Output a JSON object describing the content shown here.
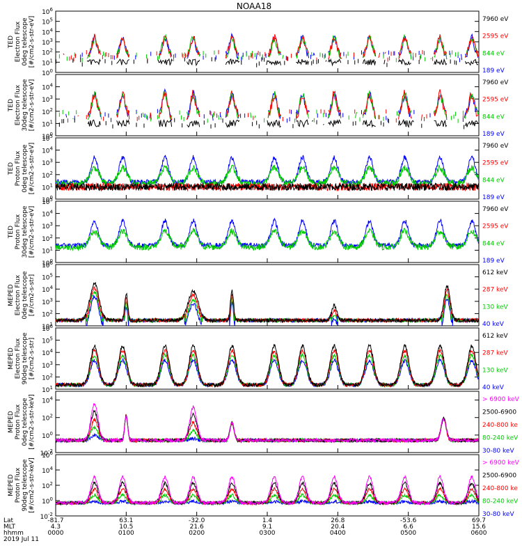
{
  "title": "NOAA18",
  "chart_data": [
    {
      "type": "line",
      "ylabel": [
        "TED",
        "Electron Flux",
        "0deg telescope",
        "[#/cm2-s-str-eV]"
      ],
      "ylim_exp": [
        0,
        6
      ],
      "yticks": [
        0,
        1,
        2,
        3,
        4,
        5,
        6
      ],
      "series": [
        {
          "name": "7960 eV",
          "color": "#000000",
          "profile": "black_low",
          "density": "sparse"
        },
        {
          "name": "2595 eV",
          "color": "#ff0000",
          "profile": "red_mid",
          "density": "sparse"
        },
        {
          "name": "844 eV",
          "color": "#00cc00",
          "profile": "green_mid",
          "density": "sparse"
        },
        {
          "name": "189 eV",
          "color": "#0000ff",
          "profile": "blue_ticks",
          "density": "sparse"
        }
      ]
    },
    {
      "type": "line",
      "ylabel": [
        "TED",
        "Electron Flux",
        "30deg telescope",
        "[#/cm2-s-str-eV]"
      ],
      "ylim_exp": [
        0,
        5
      ],
      "yticks": [
        0,
        1,
        2,
        3,
        4
      ],
      "series": [
        {
          "name": "7960 eV",
          "color": "#000000",
          "profile": "black_low",
          "density": "sparse"
        },
        {
          "name": "2595 eV",
          "color": "#ff0000",
          "profile": "red_mid",
          "density": "sparse"
        },
        {
          "name": "844 eV",
          "color": "#00cc00",
          "profile": "green_mid",
          "density": "sparse"
        },
        {
          "name": "189 eV",
          "color": "#0000ff",
          "profile": "blue_ticks",
          "density": "sparse"
        }
      ]
    },
    {
      "type": "line",
      "ylabel": [
        "TED",
        "Proton Flux",
        "0deg telescope",
        "[#/cm2-s-str-eV]"
      ],
      "ylim_exp": [
        0,
        5
      ],
      "yticks": [
        0,
        1,
        2,
        3,
        4,
        5
      ],
      "series": [
        {
          "name": "7960 eV",
          "color": "#000000",
          "profile": "black_low",
          "density": "dense"
        },
        {
          "name": "2595 eV",
          "color": "#ff0000",
          "profile": "red_low",
          "density": "dense"
        },
        {
          "name": "844 eV",
          "color": "#00cc00",
          "profile": "green_wide",
          "density": "dense"
        },
        {
          "name": "189 eV",
          "color": "#0000ff",
          "profile": "blue_high",
          "density": "dense"
        }
      ]
    },
    {
      "type": "line",
      "ylabel": [
        "TED",
        "Proton Flux",
        "30deg telescope",
        "[#/cm2-s-str-eV]"
      ],
      "ylim_exp": [
        0,
        5
      ],
      "yticks": [
        0,
        1,
        2,
        3,
        4,
        5
      ],
      "series": [
        {
          "name": "7960 eV",
          "color": "#000000",
          "profile": "none",
          "density": "none"
        },
        {
          "name": "2595 eV",
          "color": "#ff0000",
          "profile": "none",
          "density": "none"
        },
        {
          "name": "844 eV",
          "color": "#00cc00",
          "profile": "green_wide",
          "density": "dense"
        },
        {
          "name": "189 eV",
          "color": "#0000ff",
          "profile": "blue_high",
          "density": "dense"
        }
      ]
    },
    {
      "type": "line",
      "ylabel": [
        "MEPED",
        "Electron Flux",
        "0deg telescope",
        "[#/cm2-s-str]"
      ],
      "ylim_exp": [
        1,
        6
      ],
      "yticks": [
        1,
        2,
        3,
        4,
        5,
        6
      ],
      "series": [
        {
          "name": "612 keV",
          "color": "#000000",
          "profile": "meped_e",
          "density": "dense"
        },
        {
          "name": "287 keV",
          "color": "#ff0000",
          "profile": "meped_e",
          "density": "dense"
        },
        {
          "name": "130 keV",
          "color": "#00cc00",
          "profile": "meped_e",
          "density": "dense"
        },
        {
          "name": "40 keV",
          "color": "#0000ff",
          "profile": "meped_e",
          "density": "dense"
        }
      ]
    },
    {
      "type": "line",
      "ylabel": [
        "MEPED",
        "Electron Flux",
        "90deg telescope",
        "[#/cm2-s-str]"
      ],
      "ylim_exp": [
        1,
        6
      ],
      "yticks": [
        1,
        2,
        3,
        4,
        5,
        6
      ],
      "series": [
        {
          "name": "612 keV",
          "color": "#000000",
          "profile": "meped_e90",
          "density": "dense"
        },
        {
          "name": "287 keV",
          "color": "#ff0000",
          "profile": "meped_e90",
          "density": "dense"
        },
        {
          "name": "130 keV",
          "color": "#00cc00",
          "profile": "meped_e90",
          "density": "dense"
        },
        {
          "name": "40 keV",
          "color": "#0000ff",
          "profile": "meped_e90",
          "density": "dense"
        }
      ]
    },
    {
      "type": "line",
      "ylabel": [
        "MEPED",
        "Proton Flux",
        "0deg telescope",
        "[#/cm2-s-str-keV]"
      ],
      "ylim_exp": [
        -2,
        5
      ],
      "yticks": [
        -2,
        0,
        2,
        4
      ],
      "series": [
        {
          "name": "> 6900 keV",
          "color": "#ff00ff",
          "profile": "meped_p",
          "density": "dense"
        },
        {
          "name": "2500-6900",
          "color": "#000000",
          "profile": "meped_p",
          "density": "dense"
        },
        {
          "name": "240-800 ke",
          "color": "#ff0000",
          "profile": "meped_p",
          "density": "dense"
        },
        {
          "name": "80-240 keV",
          "color": "#00cc00",
          "profile": "meped_p",
          "density": "dense"
        },
        {
          "name": "30-80 keV",
          "color": "#0000ff",
          "profile": "meped_p",
          "density": "dense"
        }
      ]
    },
    {
      "type": "line",
      "ylabel": [
        "MEPED",
        "Proton Flux",
        "90deg telescope",
        "[#/cm2-s-str-keV]"
      ],
      "ylim_exp": [
        -2,
        6
      ],
      "yticks": [
        -2,
        0,
        2,
        4,
        6
      ],
      "series": [
        {
          "name": "> 6900 keV",
          "color": "#ff00ff",
          "profile": "meped_p90",
          "density": "dense"
        },
        {
          "name": "2500-6900",
          "color": "#000000",
          "profile": "meped_p90",
          "density": "dense"
        },
        {
          "name": "240-800 ke",
          "color": "#ff0000",
          "profile": "meped_p90",
          "density": "dense"
        },
        {
          "name": "80-240 keV",
          "color": "#00cc00",
          "profile": "meped_p90",
          "density": "dense"
        },
        {
          "name": "30-80 keV",
          "color": "#0000ff",
          "profile": "meped_p90",
          "density": "dense"
        }
      ]
    }
  ],
  "xaxis": {
    "row_labels": [
      "Lat",
      "MLT",
      "hhmm",
      "2019 Jul 11"
    ],
    "xlim_hours": [
      0,
      6
    ],
    "ticks": [
      {
        "t": 0,
        "lat": "-81.7",
        "mlt": "4.3",
        "hhmm": "0000"
      },
      {
        "t": 1,
        "lat": "63.1",
        "mlt": "10.5",
        "hhmm": "0100"
      },
      {
        "t": 2,
        "lat": "-32.0",
        "mlt": "21.6",
        "hhmm": "0200"
      },
      {
        "t": 3,
        "lat": "1.4",
        "mlt": "9.1",
        "hhmm": "0300"
      },
      {
        "t": 4,
        "lat": "26.8",
        "mlt": "20.4",
        "hhmm": "0400"
      },
      {
        "t": 5,
        "lat": "-53.6",
        "mlt": "6.6",
        "hhmm": "0500"
      },
      {
        "t": 6,
        "lat": "69.7",
        "mlt": "15.6",
        "hhmm": "0600"
      }
    ]
  }
}
